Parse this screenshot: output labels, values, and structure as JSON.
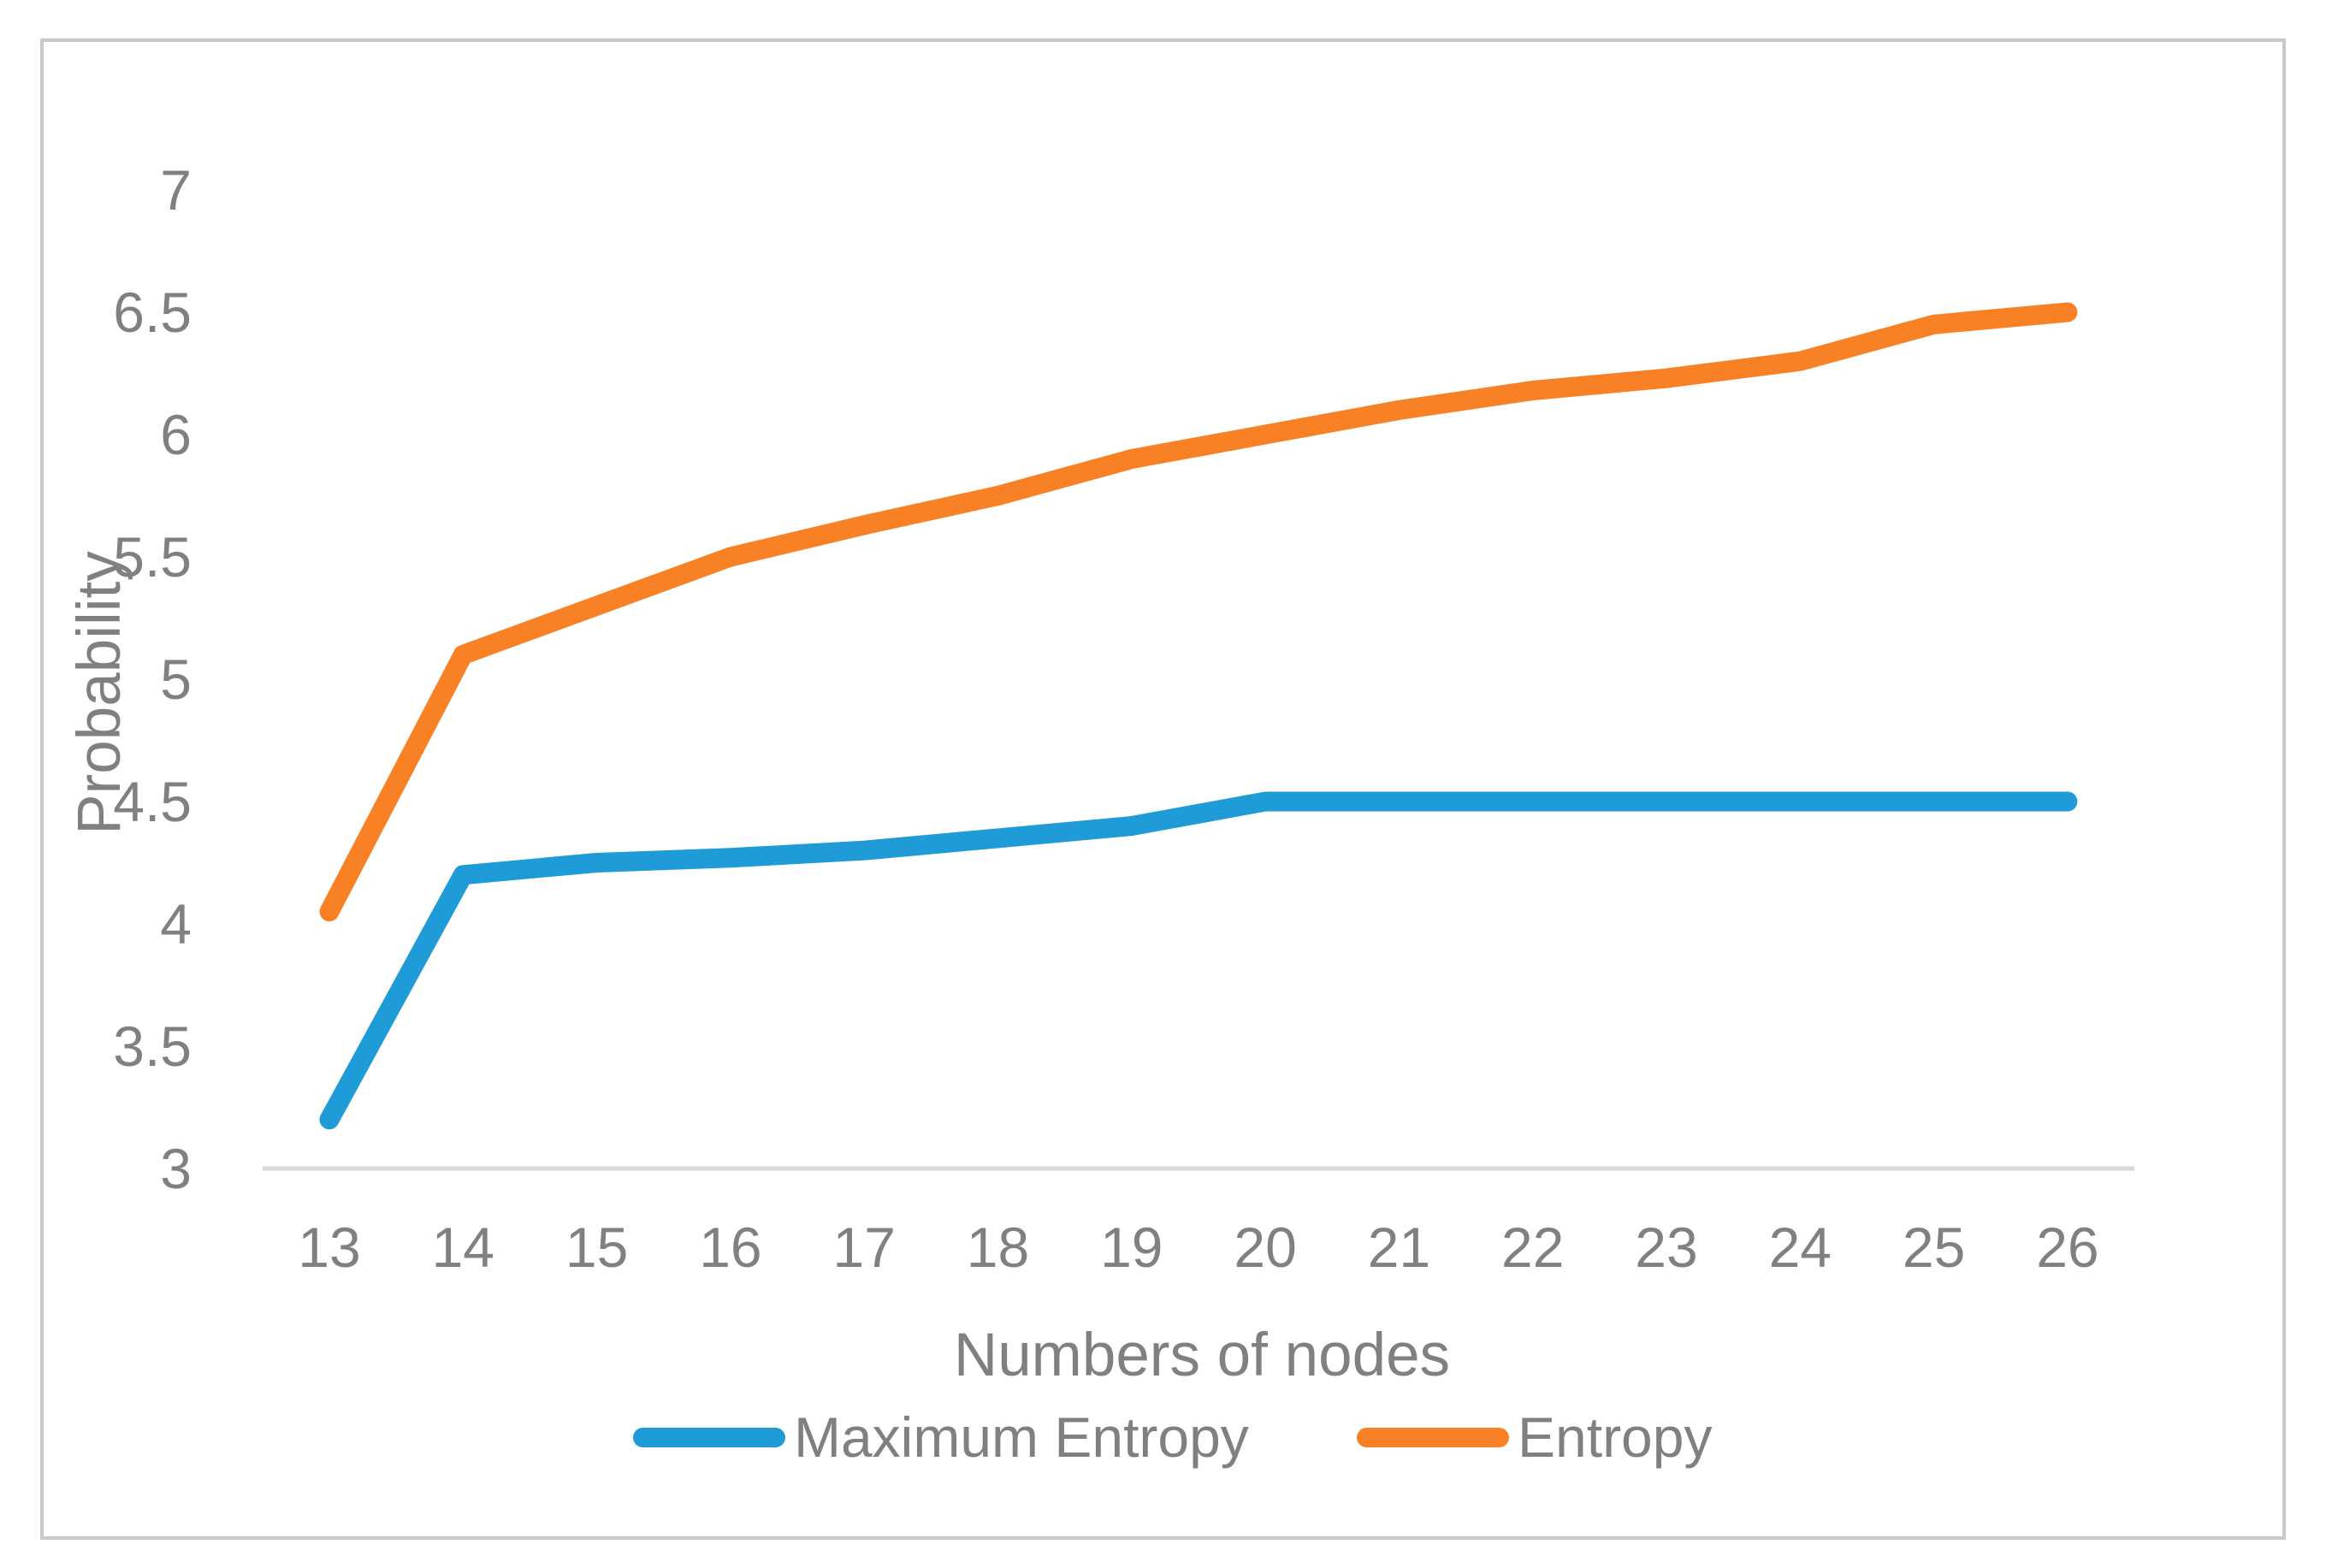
{
  "chart_data": {
    "type": "line",
    "title": "",
    "xlabel": "Numbers of nodes",
    "ylabel": "Probability",
    "categories": [
      13,
      14,
      15,
      16,
      17,
      18,
      19,
      20,
      21,
      22,
      23,
      24,
      25,
      26
    ],
    "series": [
      {
        "name": "Maximum Entropy",
        "color": "#1F9BD7",
        "values": [
          3.2,
          4.2,
          4.25,
          4.27,
          4.3,
          4.35,
          4.4,
          4.5,
          4.5,
          4.5,
          4.5,
          4.5,
          4.5,
          4.5
        ]
      },
      {
        "name": "Entropy",
        "color": "#F98125",
        "values": [
          4.05,
          5.1,
          5.3,
          5.5,
          5.63,
          5.75,
          5.9,
          6.0,
          6.1,
          6.18,
          6.23,
          6.3,
          6.45,
          6.5
        ]
      }
    ],
    "ylim": [
      3,
      7
    ],
    "yticks": [
      3,
      3.5,
      4,
      4.5,
      5,
      5.5,
      6,
      6.5,
      7
    ],
    "ytick_labels": [
      "3",
      "3.5",
      "4",
      "4.5",
      "5",
      "5.5",
      "6",
      "6.5",
      "7"
    ],
    "xtick_labels": [
      "13",
      "14",
      "15",
      "16",
      "17",
      "18",
      "19",
      "20",
      "21",
      "22",
      "23",
      "24",
      "25",
      "26"
    ],
    "grid": false,
    "legend_position": "bottom"
  },
  "colors": {
    "background": "#FFFFFF",
    "axis_text": "#808080",
    "axis_line": "#D9D9D9",
    "frame_border": "#C9C9C9",
    "series_blue": "#1F9BD7",
    "series_orange": "#F98125"
  }
}
